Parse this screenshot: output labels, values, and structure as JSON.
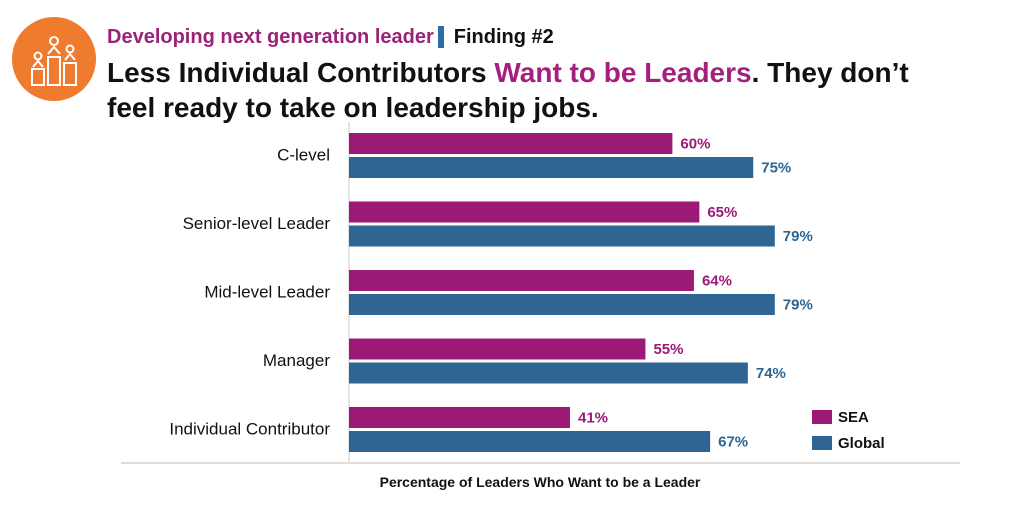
{
  "header": {
    "subtitle": "Developing next generation leader",
    "finding": "Finding #2",
    "headline_part1": "Less Individual Contributors ",
    "headline_accent": "Want to be Leaders",
    "headline_part2": ". They don’t",
    "headline_line2": "feel ready to take on leadership jobs.",
    "logo_icon": "leadership-podium-icon"
  },
  "colors": {
    "sea": "#9b1a76",
    "global": "#2e6593",
    "subtitle": "#9b2377",
    "accent": "#a3207f",
    "logo": "#ef7b2e"
  },
  "chart_data": {
    "type": "bar",
    "orientation": "horizontal",
    "categories": [
      "C-level",
      "Senior-level Leader",
      "Mid-level Leader",
      "Manager",
      "Individual Contributor"
    ],
    "series": [
      {
        "name": "SEA",
        "values": [
          60,
          65,
          64,
          55,
          41
        ]
      },
      {
        "name": "Global",
        "values": [
          75,
          79,
          79,
          74,
          67
        ]
      }
    ],
    "value_suffix": "%",
    "xlabel": "Percentage of Leaders Who Want to be a Leader",
    "xlim": [
      0,
      100
    ],
    "grid": false,
    "legend": "bottom-right"
  }
}
